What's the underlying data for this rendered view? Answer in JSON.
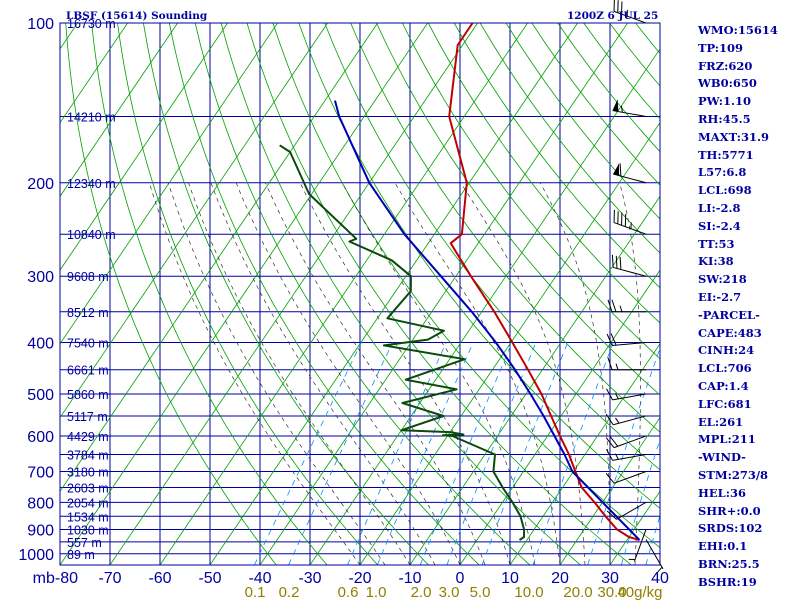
{
  "chart_data": {
    "type": "line",
    "title": "LBSF (15614) Sounding",
    "subtitle": "1200Z  6 JUL 25",
    "pressure_ticks": [
      100,
      200,
      300,
      400,
      500,
      600,
      700,
      800,
      900,
      1000
    ],
    "pressure_tick_labels": [
      "100",
      "200",
      "300",
      "400",
      "500",
      "600",
      "700",
      "800",
      "900",
      "1000"
    ],
    "temperature_ticks": [
      -80,
      -70,
      -60,
      -50,
      -40,
      -30,
      -20,
      -10,
      0,
      10,
      20,
      30,
      40
    ],
    "temperature_tick_labels": [
      "mb-80",
      "-70",
      "-60",
      "-50",
      "-40",
      "-30",
      "-20",
      "-10",
      "0",
      "10",
      "20",
      "30",
      "40"
    ],
    "temperature_range": [
      -80,
      40
    ],
    "pressure_range": [
      1050,
      100
    ],
    "skew_deg_per_decade": 72,
    "height_labels": [
      {
        "p": 100,
        "label": "16730 m"
      },
      {
        "p": 150,
        "label": "14210 m"
      },
      {
        "p": 200,
        "label": "12340 m"
      },
      {
        "p": 250,
        "label": "10840 m"
      },
      {
        "p": 300,
        "label": "9608 m"
      },
      {
        "p": 350,
        "label": "8512 m"
      },
      {
        "p": 400,
        "label": "7540 m"
      },
      {
        "p": 450,
        "label": "6661 m"
      },
      {
        "p": 500,
        "label": "5860 m"
      },
      {
        "p": 550,
        "label": "5117 m"
      },
      {
        "p": 600,
        "label": "4429 m"
      },
      {
        "p": 650,
        "label": "3784 m"
      },
      {
        "p": 700,
        "label": "3180 m"
      },
      {
        "p": 750,
        "label": "2603 m"
      },
      {
        "p": 800,
        "label": "2054 m"
      },
      {
        "p": 850,
        "label": "1534 m"
      },
      {
        "p": 900,
        "label": "1030 m"
      },
      {
        "p": 950,
        "label": "557 m"
      },
      {
        "p": 1000,
        "label": "89 m"
      }
    ],
    "mixing_ratio_labels": [
      "0.1",
      "0.2",
      "0.6",
      "1.0",
      "2.0",
      "3.0",
      "5.0",
      "10.0",
      "20.0",
      "30.0",
      "40g/kg"
    ],
    "mixing_ratio_values": [
      0.1,
      0.2,
      0.6,
      1.0,
      2.0,
      3.0,
      5.0,
      10.0,
      20.0,
      30.0,
      40.0
    ],
    "series": [
      {
        "color": "#c00000",
        "points": [
          [
            942,
            32.5
          ],
          [
            930,
            30.0
          ],
          [
            900,
            26.6
          ],
          [
            850,
            22.5
          ],
          [
            800,
            18.4
          ],
          [
            750,
            13.8
          ],
          [
            700,
            10.4
          ],
          [
            650,
            6.8
          ],
          [
            600,
            2.5
          ],
          [
            550,
            -2.0
          ],
          [
            500,
            -6.9
          ],
          [
            450,
            -12.9
          ],
          [
            400,
            -19.7
          ],
          [
            350,
            -27.5
          ],
          [
            300,
            -37.0
          ],
          [
            260,
            -45.5
          ],
          [
            250,
            -44.5
          ],
          [
            200,
            -50.5
          ],
          [
            150,
            -63.0
          ],
          [
            110,
            -71.0
          ],
          [
            100,
            -71.0
          ]
        ]
      },
      {
        "color": "#0b4a0b",
        "points": [
          [
            942,
            8.5
          ],
          [
            930,
            9.0
          ],
          [
            900,
            8.0
          ],
          [
            850,
            5.5
          ],
          [
            800,
            2.0
          ],
          [
            750,
            -2.0
          ],
          [
            700,
            -6.0
          ],
          [
            650,
            -8.0
          ],
          [
            600,
            -19.0
          ],
          [
            598,
            -21.0
          ],
          [
            596,
            -17.0
          ],
          [
            590,
            -20.0
          ],
          [
            585,
            -30.0
          ],
          [
            550,
            -23.5
          ],
          [
            520,
            -33.5
          ],
          [
            490,
            -24.5
          ],
          [
            470,
            -36.0
          ],
          [
            430,
            -27.0
          ],
          [
            405,
            -45.0
          ],
          [
            395,
            -37.0
          ],
          [
            380,
            -35.0
          ],
          [
            360,
            -48.0
          ],
          [
            320,
            -47.0
          ],
          [
            300,
            -49.0
          ],
          [
            280,
            -55.0
          ],
          [
            258,
            -66.0
          ],
          [
            255,
            -65.0
          ],
          [
            210,
            -80.5
          ],
          [
            175,
            -90.0
          ],
          [
            170,
            -93.0
          ]
        ]
      },
      {
        "color": "#0000b4",
        "points": [
          [
            942,
            32.5
          ],
          [
            700,
            9.8
          ],
          [
            650,
            5.9
          ],
          [
            600,
            1.4
          ],
          [
            550,
            -3.5
          ],
          [
            500,
            -9.1
          ],
          [
            450,
            -15.5
          ],
          [
            400,
            -23.0
          ],
          [
            350,
            -32.0
          ],
          [
            300,
            -43.0
          ],
          [
            250,
            -56.0
          ],
          [
            200,
            -70.0
          ],
          [
            150,
            -85.0
          ],
          [
            140,
            -88.0
          ]
        ]
      }
    ],
    "wind_barbs": [
      {
        "p": 100,
        "dir": 290,
        "spd": 35
      },
      {
        "p": 150,
        "dir": 280,
        "spd": 55
      },
      {
        "p": 200,
        "dir": 285,
        "spd": 60
      },
      {
        "p": 250,
        "dir": 290,
        "spd": 45
      },
      {
        "p": 300,
        "dir": 285,
        "spd": 30
      },
      {
        "p": 350,
        "dir": 270,
        "spd": 25
      },
      {
        "p": 400,
        "dir": 265,
        "spd": 20
      },
      {
        "p": 450,
        "dir": 270,
        "spd": 15
      },
      {
        "p": 500,
        "dir": 260,
        "spd": 15
      },
      {
        "p": 550,
        "dir": 255,
        "spd": 15
      },
      {
        "p": 600,
        "dir": 250,
        "spd": 20
      },
      {
        "p": 650,
        "dir": 260,
        "spd": 15
      },
      {
        "p": 700,
        "dir": 250,
        "spd": 10
      },
      {
        "p": 800,
        "dir": 240,
        "spd": 10
      },
      {
        "p": 900,
        "dir": 200,
        "spd": 5
      },
      {
        "p": 940,
        "dir": 150,
        "spd": 5
      }
    ],
    "grid": true,
    "legend": "none"
  },
  "stats": [
    "WMO:15614",
    "TP:109",
    "FRZ:620",
    "WB0:650",
    "PW:1.10",
    "RH:45.5",
    "MAXT:31.9",
    "TH:5771",
    "L57:6.8",
    "LCL:698",
    "LI:-2.8",
    "SI:-2.4",
    "TT:53",
    "KI:38",
    "SW:218",
    "EI:-2.7",
    "-PARCEL-",
    "CAPE:483",
    "CINH:24",
    "LCL:706",
    "CAP:1.4",
    "LFC:681",
    "EL:261",
    "MPL:211",
    "-WIND-",
    "STM:273/8",
    "HEL:36",
    "SHR+:0.0",
    "SRDS:102",
    "EHI:0.1",
    "BRN:25.5",
    "BSHR:19"
  ],
  "colors": {
    "isobar": "#0000a0",
    "isotherm": "#0000a0",
    "dry_adiabat": "#00a000",
    "moist_adiabat": "#303030",
    "mixing_ratio": "#0090ff",
    "axis_text": "#0000a0",
    "mixing_label": "#908000"
  }
}
